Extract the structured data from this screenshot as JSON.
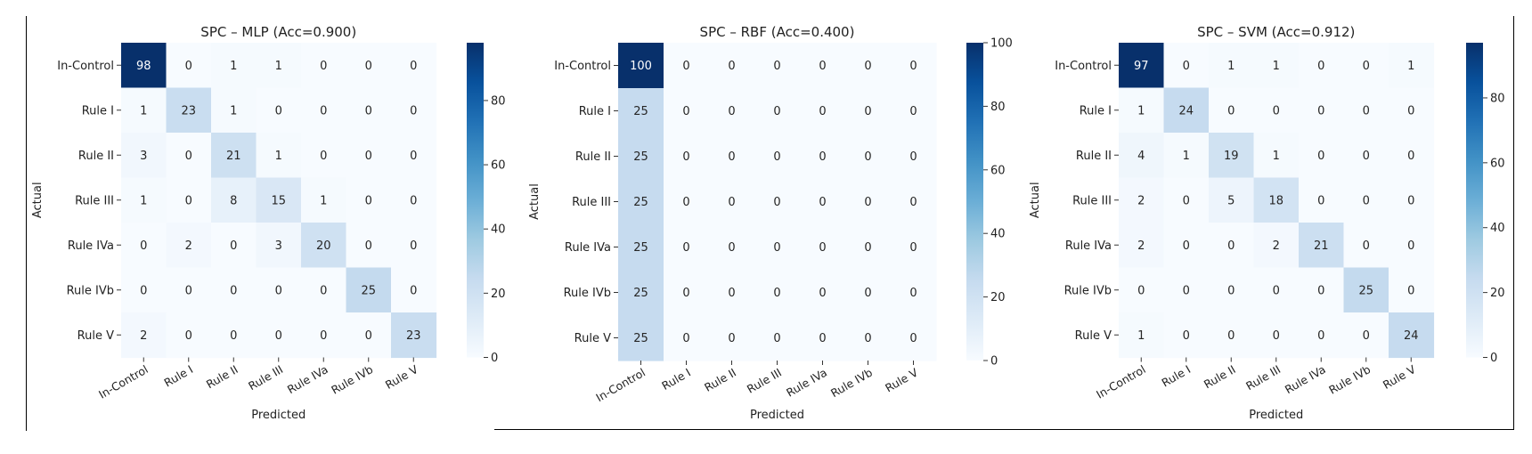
{
  "chart_data": [
    {
      "type": "heatmap",
      "title": "SPC – MLP (Acc=0.900)",
      "xlabel": "Predicted",
      "ylabel": "Actual",
      "x_categories": [
        "In-Control",
        "Rule I",
        "Rule II",
        "Rule III",
        "Rule IVa",
        "Rule IVb",
        "Rule V"
      ],
      "y_categories": [
        "In-Control",
        "Rule I",
        "Rule II",
        "Rule III",
        "Rule IVa",
        "Rule IVb",
        "Rule V"
      ],
      "values": [
        [
          98,
          0,
          1,
          1,
          0,
          0,
          0
        ],
        [
          1,
          23,
          1,
          0,
          0,
          0,
          0
        ],
        [
          3,
          0,
          21,
          1,
          0,
          0,
          0
        ],
        [
          1,
          0,
          8,
          15,
          1,
          0,
          0
        ],
        [
          0,
          2,
          0,
          3,
          20,
          0,
          0
        ],
        [
          0,
          0,
          0,
          0,
          0,
          25,
          0
        ],
        [
          2,
          0,
          0,
          0,
          0,
          0,
          23
        ]
      ],
      "colorbar": {
        "min": 0,
        "max": 98,
        "ticks": [
          0,
          20,
          40,
          60,
          80
        ],
        "colormap": "Blues"
      }
    },
    {
      "type": "heatmap",
      "title": "SPC – RBF (Acc=0.400)",
      "xlabel": "Predicted",
      "ylabel": "Actual",
      "x_categories": [
        "In-Control",
        "Rule I",
        "Rule II",
        "Rule III",
        "Rule IVa",
        "Rule IVb",
        "Rule V"
      ],
      "y_categories": [
        "In-Control",
        "Rule I",
        "Rule II",
        "Rule III",
        "Rule IVa",
        "Rule IVb",
        "Rule V"
      ],
      "values": [
        [
          100,
          0,
          0,
          0,
          0,
          0,
          0
        ],
        [
          25,
          0,
          0,
          0,
          0,
          0,
          0
        ],
        [
          25,
          0,
          0,
          0,
          0,
          0,
          0
        ],
        [
          25,
          0,
          0,
          0,
          0,
          0,
          0
        ],
        [
          25,
          0,
          0,
          0,
          0,
          0,
          0
        ],
        [
          25,
          0,
          0,
          0,
          0,
          0,
          0
        ],
        [
          25,
          0,
          0,
          0,
          0,
          0,
          0
        ]
      ],
      "colorbar": {
        "min": 0,
        "max": 100,
        "ticks": [
          0,
          20,
          40,
          60,
          80,
          100
        ],
        "colormap": "Blues"
      }
    },
    {
      "type": "heatmap",
      "title": "SPC – SVM (Acc=0.912)",
      "xlabel": "Predicted",
      "ylabel": "Actual",
      "x_categories": [
        "In-Control",
        "Rule I",
        "Rule II",
        "Rule III",
        "Rule IVa",
        "Rule IVb",
        "Rule V"
      ],
      "y_categories": [
        "In-Control",
        "Rule I",
        "Rule II",
        "Rule III",
        "Rule IVa",
        "Rule IVb",
        "Rule V"
      ],
      "values": [
        [
          97,
          0,
          1,
          1,
          0,
          0,
          1
        ],
        [
          1,
          24,
          0,
          0,
          0,
          0,
          0
        ],
        [
          4,
          1,
          19,
          1,
          0,
          0,
          0
        ],
        [
          2,
          0,
          5,
          18,
          0,
          0,
          0
        ],
        [
          2,
          0,
          0,
          2,
          21,
          0,
          0
        ],
        [
          0,
          0,
          0,
          0,
          0,
          25,
          0
        ],
        [
          1,
          0,
          0,
          0,
          0,
          0,
          24
        ]
      ],
      "colorbar": {
        "min": 0,
        "max": 97,
        "ticks": [
          0,
          20,
          40,
          60,
          80
        ],
        "colormap": "Blues"
      }
    }
  ]
}
